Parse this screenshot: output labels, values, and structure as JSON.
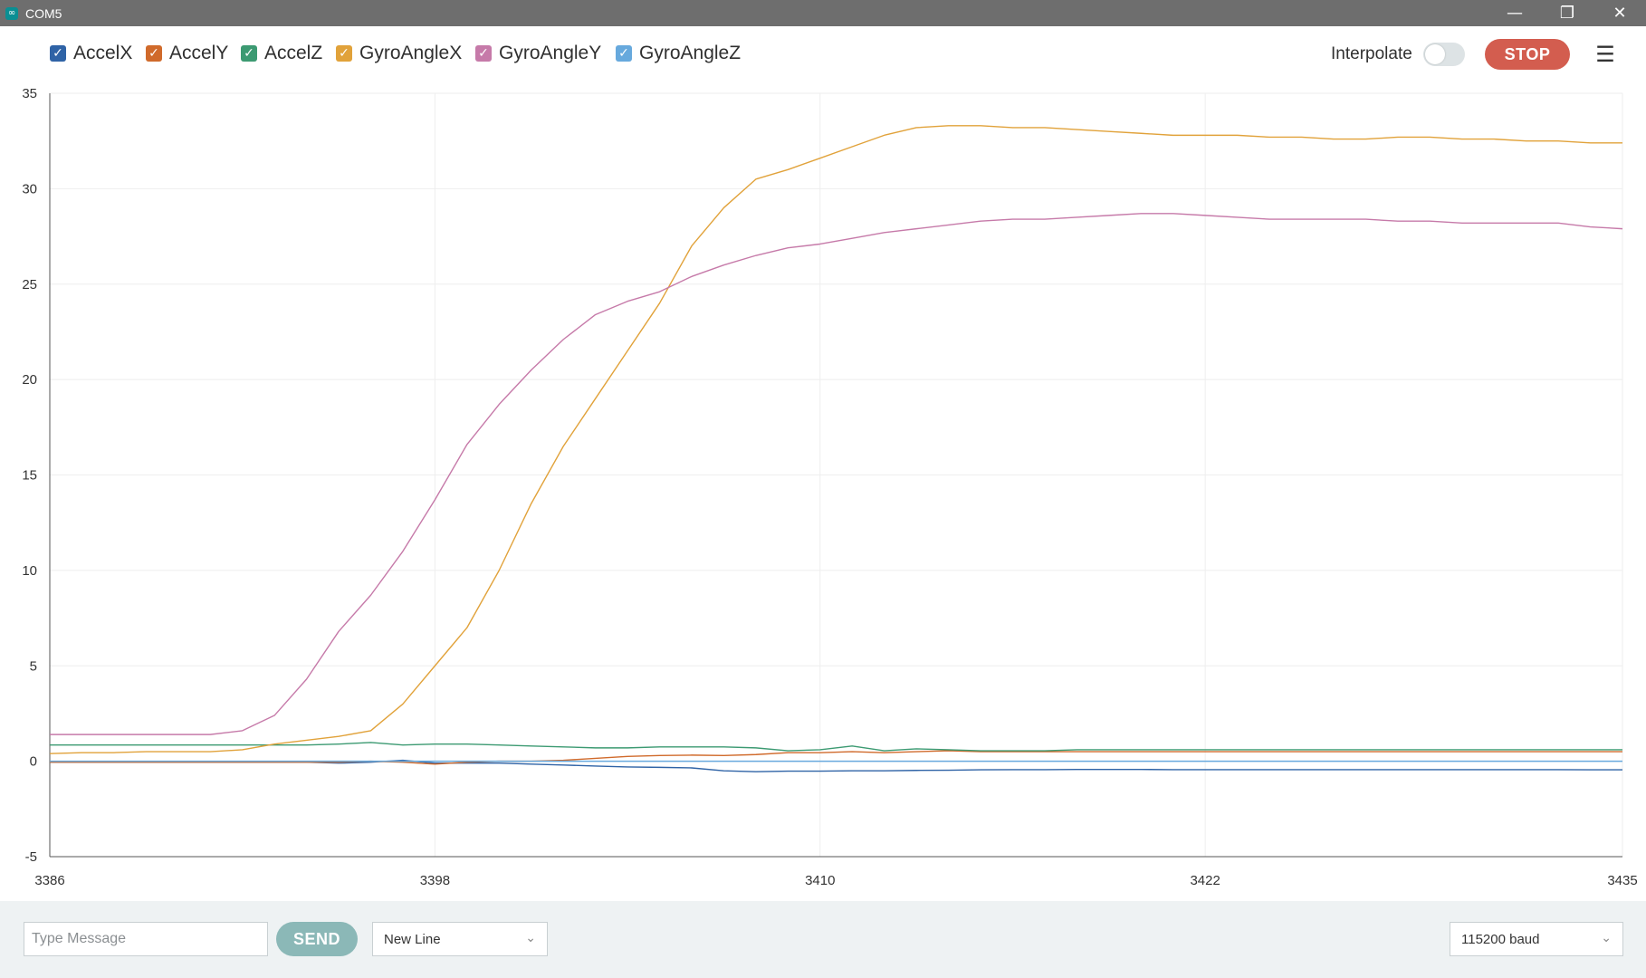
{
  "window": {
    "title": "COM5",
    "icon": "arduino-icon",
    "controls": [
      {
        "name": "minimize",
        "glyph": "—"
      },
      {
        "name": "restore",
        "glyph": "❐"
      },
      {
        "name": "close",
        "glyph": "✕"
      }
    ]
  },
  "toolbar": {
    "interpolate_label": "Interpolate",
    "interpolate_on": false,
    "stop_label": "STOP",
    "menu_icon": "clear-output-icon"
  },
  "legend": [
    {
      "name": "AccelX",
      "color": "#2f63a6",
      "checked": true
    },
    {
      "name": "AccelY",
      "color": "#d06a2b",
      "checked": true
    },
    {
      "name": "AccelZ",
      "color": "#3c9a72",
      "checked": true
    },
    {
      "name": "GyroAngleX",
      "color": "#e1a23a",
      "checked": true
    },
    {
      "name": "GyroAngleY",
      "color": "#c67aa9",
      "checked": true
    },
    {
      "name": "GyroAngleZ",
      "color": "#67a9dd",
      "checked": true
    }
  ],
  "bottom": {
    "message_placeholder": "Type Message",
    "message_value": "",
    "send_label": "SEND",
    "line_ending": "New Line",
    "baud": "115200 baud"
  },
  "chart_data": {
    "type": "line",
    "title": "",
    "xlabel": "",
    "ylabel": "",
    "xlim": [
      3386,
      3435
    ],
    "ylim": [
      -5,
      35
    ],
    "xticks": [
      3386,
      3398,
      3410,
      3422,
      3435
    ],
    "yticks": [
      35,
      30,
      25,
      20,
      15,
      10,
      5,
      0,
      -5
    ],
    "grid": true,
    "legend_position": "top-left",
    "x": [
      3386,
      3387,
      3388,
      3389,
      3390,
      3391,
      3392,
      3393,
      3394,
      3395,
      3396,
      3397,
      3398,
      3399,
      3400,
      3401,
      3402,
      3403,
      3404,
      3405,
      3406,
      3407,
      3408,
      3409,
      3410,
      3411,
      3412,
      3413,
      3414,
      3415,
      3416,
      3417,
      3418,
      3419,
      3420,
      3421,
      3422,
      3423,
      3424,
      3425,
      3426,
      3427,
      3428,
      3429,
      3430,
      3431,
      3432,
      3433,
      3434,
      3435
    ],
    "series": [
      {
        "name": "AccelX",
        "color": "#2f63a6",
        "values": [
          -0.05,
          -0.05,
          -0.05,
          -0.05,
          -0.05,
          -0.05,
          -0.05,
          -0.05,
          -0.05,
          -0.1,
          -0.05,
          0.05,
          -0.1,
          -0.1,
          -0.1,
          -0.15,
          -0.2,
          -0.25,
          -0.3,
          -0.32,
          -0.35,
          -0.5,
          -0.55,
          -0.52,
          -0.52,
          -0.5,
          -0.5,
          -0.48,
          -0.47,
          -0.45,
          -0.44,
          -0.44,
          -0.43,
          -0.43,
          -0.43,
          -0.44,
          -0.44,
          -0.44,
          -0.44,
          -0.44,
          -0.44,
          -0.44,
          -0.44,
          -0.44,
          -0.44,
          -0.44,
          -0.44,
          -0.44,
          -0.45,
          -0.45
        ]
      },
      {
        "name": "AccelY",
        "color": "#d06a2b",
        "values": [
          -0.05,
          -0.05,
          -0.05,
          -0.05,
          -0.05,
          -0.05,
          -0.05,
          -0.05,
          -0.05,
          -0.05,
          0.0,
          -0.05,
          -0.15,
          -0.05,
          0.0,
          0.0,
          0.05,
          0.15,
          0.25,
          0.3,
          0.32,
          0.3,
          0.35,
          0.45,
          0.45,
          0.5,
          0.45,
          0.5,
          0.55,
          0.5,
          0.5,
          0.5,
          0.5,
          0.5,
          0.5,
          0.5,
          0.5,
          0.5,
          0.5,
          0.5,
          0.5,
          0.5,
          0.5,
          0.5,
          0.5,
          0.5,
          0.5,
          0.5,
          0.5,
          0.5
        ]
      },
      {
        "name": "AccelZ",
        "color": "#3c9a72",
        "values": [
          0.85,
          0.85,
          0.85,
          0.85,
          0.85,
          0.85,
          0.85,
          0.85,
          0.85,
          0.9,
          0.98,
          0.85,
          0.9,
          0.9,
          0.85,
          0.8,
          0.75,
          0.7,
          0.7,
          0.75,
          0.75,
          0.75,
          0.7,
          0.55,
          0.6,
          0.8,
          0.55,
          0.65,
          0.6,
          0.55,
          0.55,
          0.55,
          0.6,
          0.6,
          0.6,
          0.6,
          0.6,
          0.6,
          0.6,
          0.6,
          0.6,
          0.6,
          0.6,
          0.6,
          0.6,
          0.6,
          0.6,
          0.6,
          0.6,
          0.6
        ]
      },
      {
        "name": "GyroAngleX",
        "color": "#e1a23a",
        "values": [
          0.4,
          0.45,
          0.45,
          0.5,
          0.5,
          0.5,
          0.6,
          0.9,
          1.1,
          1.3,
          1.6,
          3.0,
          5.0,
          7.0,
          10.0,
          13.5,
          16.5,
          19.0,
          21.5,
          24.0,
          27.0,
          29.0,
          30.5,
          31.0,
          31.6,
          32.2,
          32.8,
          33.2,
          33.3,
          33.3,
          33.2,
          33.2,
          33.1,
          33.0,
          32.9,
          32.8,
          32.8,
          32.8,
          32.7,
          32.7,
          32.6,
          32.6,
          32.7,
          32.7,
          32.6,
          32.6,
          32.5,
          32.5,
          32.4,
          32.4
        ]
      },
      {
        "name": "GyroAngleY",
        "color": "#c67aa9",
        "values": [
          1.4,
          1.4,
          1.4,
          1.4,
          1.4,
          1.4,
          1.6,
          2.4,
          4.3,
          6.8,
          8.7,
          11.0,
          13.7,
          16.6,
          18.7,
          20.5,
          22.1,
          23.4,
          24.1,
          24.6,
          25.4,
          26.0,
          26.5,
          26.9,
          27.1,
          27.4,
          27.7,
          27.9,
          28.1,
          28.3,
          28.4,
          28.4,
          28.5,
          28.6,
          28.7,
          28.7,
          28.6,
          28.5,
          28.4,
          28.4,
          28.4,
          28.4,
          28.3,
          28.3,
          28.2,
          28.2,
          28.2,
          28.2,
          28.0,
          27.9
        ]
      },
      {
        "name": "GyroAngleZ",
        "color": "#67a9dd",
        "values": [
          0.0,
          0.0,
          0.0,
          0.0,
          0.0,
          0.0,
          0.0,
          0.0,
          0.0,
          0.0,
          0.0,
          0.0,
          0.0,
          0.0,
          0.0,
          0.0,
          0.0,
          0.0,
          0.0,
          0.0,
          0.0,
          0.0,
          0.0,
          0.0,
          0.0,
          0.0,
          0.0,
          0.0,
          0.0,
          0.0,
          0.0,
          0.0,
          0.0,
          0.0,
          0.0,
          0.0,
          0.0,
          0.0,
          0.0,
          0.0,
          0.0,
          0.0,
          0.0,
          0.0,
          0.0,
          0.0,
          0.0,
          0.0,
          0.0,
          0.0
        ]
      }
    ]
  }
}
